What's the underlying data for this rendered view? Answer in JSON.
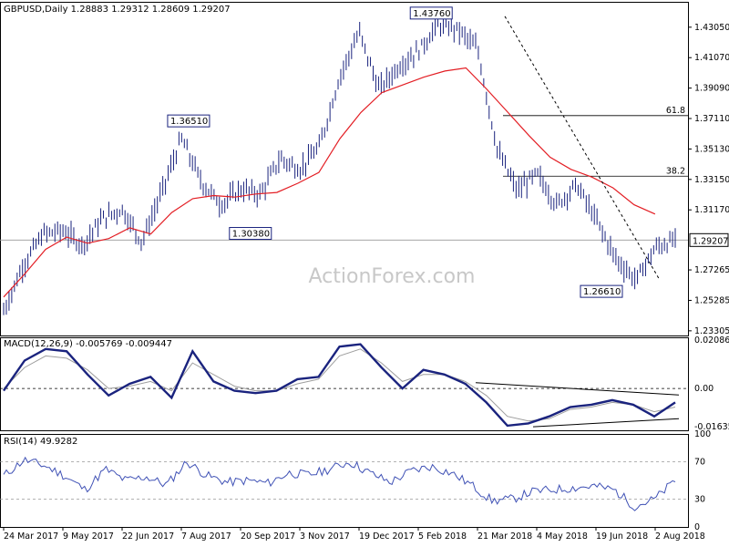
{
  "colors": {
    "candle": "#1a237e",
    "ma": "#e31e24",
    "macd_line": "#1a237e",
    "macd_signal": "#9e9e9e",
    "rsi_line": "#3f51b5",
    "grid": "#000000",
    "price_box": "#000000"
  },
  "chart_data": [
    {
      "type": "line",
      "panel": "price",
      "title": "GBPUSD,Daily  1.28883 1.29312 1.28609 1.29207",
      "ylim": [
        1.23,
        1.447
      ],
      "yticks": [
        "1.43050",
        "1.41070",
        "1.39090",
        "1.37110",
        "1.35130",
        "1.33150",
        "1.31170",
        "1.27265",
        "1.25285",
        "1.23305"
      ],
      "current_price": "1.29207",
      "price_x": [
        0,
        10,
        20,
        30,
        40,
        50,
        60,
        70,
        80,
        90,
        100,
        110,
        120,
        130,
        140,
        150,
        160,
        170,
        180,
        190,
        200,
        210,
        220,
        230,
        240,
        250,
        260,
        270,
        280,
        290,
        300,
        310,
        320,
        330,
        340
      ],
      "price_y": [
        1.246,
        1.276,
        1.296,
        1.298,
        1.289,
        1.306,
        1.312,
        1.291,
        1.323,
        1.358,
        1.33,
        1.315,
        1.325,
        1.322,
        1.345,
        1.338,
        1.353,
        1.398,
        1.427,
        1.39,
        1.405,
        1.415,
        1.432,
        1.429,
        1.416,
        1.35,
        1.324,
        1.335,
        1.315,
        1.328,
        1.305,
        1.28,
        1.266,
        1.287,
        1.292
      ],
      "ma_y": [
        1.255,
        1.27,
        1.286,
        1.294,
        1.29,
        1.293,
        1.3,
        1.296,
        1.31,
        1.319,
        1.321,
        1.32,
        1.322,
        1.323,
        1.329,
        1.336,
        1.358,
        1.375,
        1.388,
        1.393,
        1.398,
        1.402,
        1.404,
        1.39,
        1.375,
        1.36,
        1.346,
        1.338,
        1.333,
        1.326,
        1.315,
        1.309
      ],
      "annotations": [
        {
          "label": "1.43760",
          "x": 228,
          "y": 1.4376
        },
        {
          "label": "1.36510",
          "x": 107,
          "y": 1.3651
        },
        {
          "label": "1.30380",
          "x": 118,
          "y": 1.3038
        },
        {
          "label": "1.26610",
          "x": 316,
          "y": 1.2661
        }
      ],
      "fib_levels": [
        {
          "label": "61.8",
          "value": 1.373
        },
        {
          "label": "38.2",
          "value": 1.3336
        }
      ],
      "watermark": "ActionForex.com"
    },
    {
      "type": "line",
      "panel": "macd",
      "title": "MACD(12,26,9) -0.005769 -0.009447",
      "ylim": [
        -0.018,
        0.022
      ],
      "yticks": [
        "0.020861",
        "0.00",
        "-0.016357"
      ],
      "series": [
        {
          "values": [
            -0.001,
            0.012,
            0.017,
            0.016,
            0.006,
            -0.003,
            0.002,
            0.005,
            -0.004,
            0.016,
            0.003,
            -0.001,
            -0.002,
            -0.001,
            0.004,
            0.005,
            0.018,
            0.019,
            0.009,
            0.0,
            0.008,
            0.006,
            0.002,
            -0.006,
            -0.016,
            -0.015,
            -0.012,
            -0.008,
            -0.007,
            -0.005,
            -0.007,
            -0.012,
            -0.006
          ]
        },
        {
          "values": [
            0.0,
            0.009,
            0.014,
            0.013,
            0.008,
            0.0,
            0.001,
            0.003,
            -0.001,
            0.011,
            0.006,
            0.001,
            -0.001,
            -0.001,
            0.002,
            0.004,
            0.014,
            0.017,
            0.011,
            0.003,
            0.006,
            0.006,
            0.003,
            -0.003,
            -0.012,
            -0.014,
            -0.013,
            -0.009,
            -0.008,
            -0.006,
            -0.007,
            -0.01,
            -0.008
          ]
        }
      ]
    },
    {
      "type": "line",
      "panel": "rsi",
      "title": "RSI(14) 49.9282",
      "ylim": [
        0,
        100
      ],
      "yticks": [
        "100",
        "70",
        "30",
        "0"
      ],
      "values": [
        55,
        72,
        66,
        55,
        40,
        62,
        50,
        54,
        45,
        70,
        55,
        48,
        50,
        47,
        58,
        56,
        62,
        70,
        58,
        48,
        60,
        65,
        58,
        45,
        28,
        30,
        38,
        40,
        42,
        44,
        40,
        22,
        30,
        49.93
      ]
    }
  ],
  "x_axis_labels": [
    "24 Mar 2017",
    "9 May 2017",
    "22 Jun 2017",
    "7 Aug 2017",
    "20 Sep 2017",
    "3 Nov 2017",
    "19 Dec 2017",
    "5 Feb 2018",
    "21 Mar 2018",
    "4 May 2018",
    "19 Jun 2018",
    "2 Aug 2018"
  ]
}
